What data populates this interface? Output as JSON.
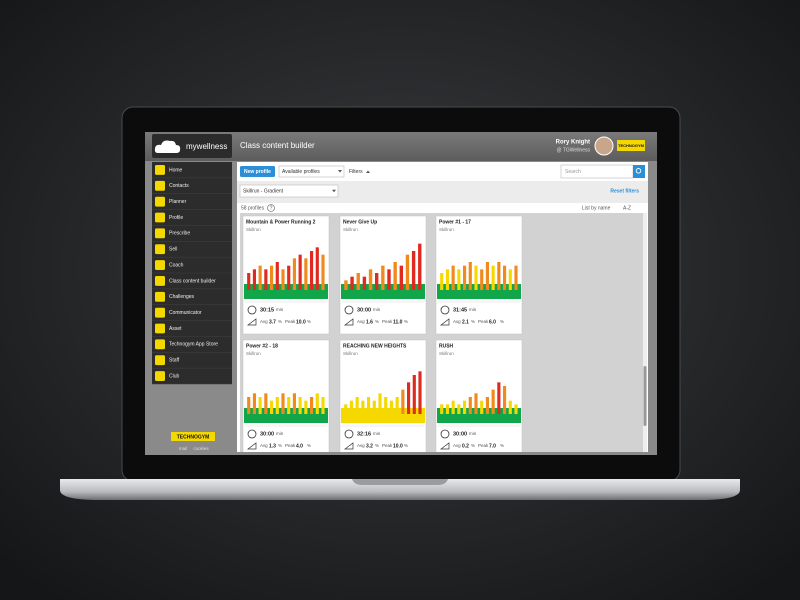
{
  "header": {
    "logo": "mywellness",
    "title": "Class content builder",
    "user_name": "Rory Knight",
    "user_club": "@ TGWellness",
    "brand": "TECHNOGYM"
  },
  "menu": [
    "Home",
    "Contacts",
    "Planner",
    "Profile",
    "Prescribe",
    "Sell",
    "Coach",
    "Class content builder",
    "Challenges",
    "Communicator",
    "Asset",
    "Technogym App Store",
    "Staff",
    "Club"
  ],
  "sidebar_footer": {
    "brand": "TECHNOGYM",
    "links": [
      "mail",
      "cookies"
    ]
  },
  "toolbar": {
    "new_profile": "New profile",
    "available": "Available profiles",
    "filters": "Filters",
    "search": "Search",
    "equipment": "Skillrun - Gradient",
    "reset": "Reset filters",
    "count": "58 profiles",
    "help": "?",
    "sort": "List by name",
    "order": "A-Z"
  },
  "units": {
    "time": "min",
    "percent": "%",
    "avg": "Avg",
    "peak": "Peak"
  },
  "profile_ylim": [
    0,
    12
  ],
  "profiles": [
    {
      "title": "Mountain & Power Running 2",
      "equipment": "Skillrun",
      "time": "30:15",
      "avg": "3.7",
      "peak": "10.0",
      "base_color": "#12a64a",
      "bars": [
        3,
        4,
        5,
        4,
        5,
        6,
        4,
        5,
        7,
        8,
        7,
        9,
        10,
        8
      ],
      "bar_colors": [
        "#e0291f",
        "#e0291f",
        "#f08a1c",
        "#e0291f",
        "#f08a1c",
        "#e0291f",
        "#f08a1c",
        "#e0291f",
        "#f08a1c",
        "#e0291f",
        "#f08a1c",
        "#e0291f",
        "#e0291f",
        "#f08a1c"
      ]
    },
    {
      "title": "Never Give Up",
      "equipment": "Skillrun",
      "time": "30:00",
      "avg": "1.6",
      "peak": "11.0",
      "base_color": "#12a64a",
      "bars": [
        1,
        2,
        3,
        2,
        4,
        3,
        5,
        4,
        6,
        5,
        8,
        9,
        11
      ],
      "bar_colors": [
        "#f08a1c",
        "#e0291f",
        "#f08a1c",
        "#e0291f",
        "#f08a1c",
        "#e0291f",
        "#f08a1c",
        "#e0291f",
        "#f08a1c",
        "#e0291f",
        "#f08a1c",
        "#e0291f",
        "#e0291f"
      ]
    },
    {
      "title": "Power #1 - 17",
      "equipment": "Skillrun",
      "time": "31:45",
      "avg": "2.1",
      "peak": "6.0",
      "base_color": "#12a64a",
      "bars": [
        3,
        4,
        5,
        4,
        5,
        6,
        5,
        4,
        6,
        5,
        6,
        5,
        4,
        5
      ],
      "bar_colors": [
        "#f5d800",
        "#f5d800",
        "#f08a1c",
        "#f5d800",
        "#f08a1c",
        "#f08a1c",
        "#f5d800",
        "#f08a1c",
        "#f08a1c",
        "#f5d800",
        "#f08a1c",
        "#f08a1c",
        "#f5d800",
        "#f08a1c"
      ]
    },
    {
      "title": "Power #2 - 18",
      "equipment": "Skillrun",
      "time": "30:00",
      "avg": "1.3",
      "peak": "4.0",
      "base_color": "#12a64a",
      "bars": [
        3,
        4,
        3,
        4,
        2,
        3,
        4,
        3,
        4,
        3,
        2,
        3,
        4,
        3
      ],
      "bar_colors": [
        "#f08a1c",
        "#f08a1c",
        "#f5d800",
        "#f08a1c",
        "#f5d800",
        "#f5d800",
        "#f08a1c",
        "#f5d800",
        "#f08a1c",
        "#f5d800",
        "#f5d800",
        "#f08a1c",
        "#f5d800",
        "#f5d800"
      ]
    },
    {
      "title": "REACHING NEW HEIGHTS",
      "equipment": "Skillrun",
      "time": "32:16",
      "avg": "3.2",
      "peak": "10.0",
      "base_color": "#f5d800",
      "bars": [
        1,
        2,
        3,
        2,
        3,
        2,
        4,
        3,
        2,
        3,
        5,
        7,
        9,
        10
      ],
      "bar_colors": [
        "#f5d800",
        "#f5d800",
        "#f5d800",
        "#f5d800",
        "#f5d800",
        "#f5d800",
        "#f5d800",
        "#f5d800",
        "#f5d800",
        "#f5d800",
        "#f08a1c",
        "#e0291f",
        "#e0291f",
        "#e0291f"
      ]
    },
    {
      "title": "RUSH",
      "equipment": "Skillrun",
      "time": "30:00",
      "avg": "0.2",
      "peak": "7.0",
      "base_color": "#12a64a",
      "bars": [
        1,
        1,
        2,
        1,
        2,
        3,
        4,
        2,
        3,
        5,
        7,
        6,
        2,
        1
      ],
      "bar_colors": [
        "#f5d800",
        "#f5d800",
        "#f5d800",
        "#f5d800",
        "#f5d800",
        "#f08a1c",
        "#f08a1c",
        "#f5d800",
        "#f08a1c",
        "#f08a1c",
        "#e0291f",
        "#f08a1c",
        "#f5d800",
        "#f5d800"
      ]
    }
  ]
}
